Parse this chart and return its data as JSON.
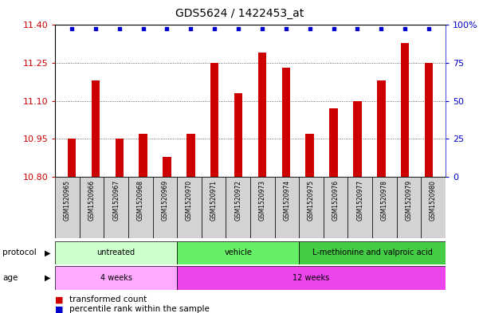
{
  "title": "GDS5624 / 1422453_at",
  "samples": [
    "GSM1520965",
    "GSM1520966",
    "GSM1520967",
    "GSM1520968",
    "GSM1520969",
    "GSM1520970",
    "GSM1520971",
    "GSM1520972",
    "GSM1520973",
    "GSM1520974",
    "GSM1520975",
    "GSM1520976",
    "GSM1520977",
    "GSM1520978",
    "GSM1520979",
    "GSM1520980"
  ],
  "transformed_count": [
    10.95,
    11.18,
    10.95,
    10.97,
    10.88,
    10.97,
    11.25,
    11.13,
    11.29,
    11.23,
    10.97,
    11.07,
    11.1,
    11.18,
    11.33,
    11.25
  ],
  "percentile_y": [
    11.385,
    11.385,
    11.385,
    11.385,
    11.385,
    11.385,
    11.385,
    11.385,
    11.385,
    11.385,
    11.385,
    11.385,
    11.385,
    11.385,
    11.385,
    11.385
  ],
  "ylim": [
    10.8,
    11.4
  ],
  "yticks": [
    10.8,
    10.95,
    11.1,
    11.25,
    11.4
  ],
  "right_ytick_labels": [
    "0",
    "25",
    "50",
    "75",
    "100%"
  ],
  "bar_color": "#cc0000",
  "dot_color": "#0000cc",
  "protocol_groups": [
    {
      "label": "untreated",
      "start": 0,
      "end": 5,
      "color": "#ccffcc"
    },
    {
      "label": "vehicle",
      "start": 5,
      "end": 10,
      "color": "#66ee66"
    },
    {
      "label": "L-methionine and valproic acid",
      "start": 10,
      "end": 16,
      "color": "#44cc44"
    }
  ],
  "age_groups": [
    {
      "label": "4 weeks",
      "start": 0,
      "end": 5,
      "color": "#ffaaff"
    },
    {
      "label": "12 weeks",
      "start": 5,
      "end": 16,
      "color": "#ee44ee"
    }
  ],
  "protocol_label": "protocol",
  "age_label": "age",
  "legend_bar_label": "transformed count",
  "legend_dot_label": "percentile rank within the sample"
}
